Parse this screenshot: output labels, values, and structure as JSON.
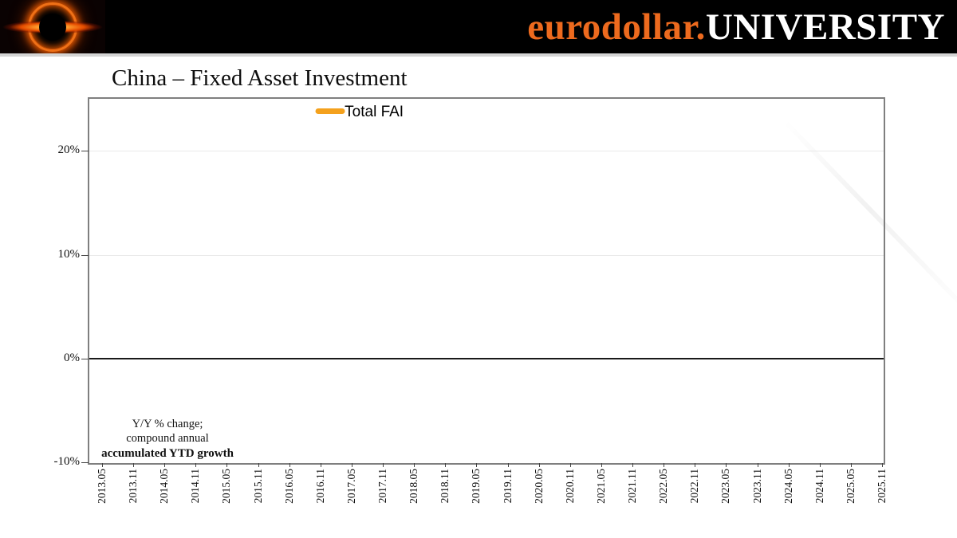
{
  "header": {
    "brand_orange": "eurodollar.",
    "brand_white": "UNIVERSITY",
    "logo_icon": "black-hole-icon",
    "colors": {
      "bg": "#000000",
      "orange": "#ED6A1E",
      "white": "#FFFFFF"
    }
  },
  "chart_data": {
    "type": "line",
    "title": "China – Fixed Asset Investment",
    "legend": {
      "label": "Total FAI",
      "color": "#F4A11D",
      "position": "top-center"
    },
    "series": [
      {
        "name": "Total FAI",
        "color": "#F4A11D",
        "values": []
      }
    ],
    "x_ticks": [
      "2013.05",
      "2013.11",
      "2014.05",
      "2014.11",
      "2015.05",
      "2015.11",
      "2016.05",
      "2016.11",
      "2017.05",
      "2017.11",
      "2018.05",
      "2018.11",
      "2019.05",
      "2019.11",
      "2020.05",
      "2020.11",
      "2021.05",
      "2021.11",
      "2022.05",
      "2022.11",
      "2023.05",
      "2023.11",
      "2024.05",
      "2024.11",
      "2025.05",
      "2025.11"
    ],
    "y_ticks": [
      {
        "value": 20,
        "label": "20%"
      },
      {
        "value": 10,
        "label": "10%"
      },
      {
        "value": 0,
        "label": "0%"
      },
      {
        "value": -10,
        "label": "-10%"
      }
    ],
    "ylim": [
      -10,
      25
    ],
    "grid": "horizontal",
    "zero_line": true,
    "annotation": {
      "line1": "Y/Y % change;",
      "line2": "compound annual",
      "line3": "accumulated YTD growth"
    }
  }
}
